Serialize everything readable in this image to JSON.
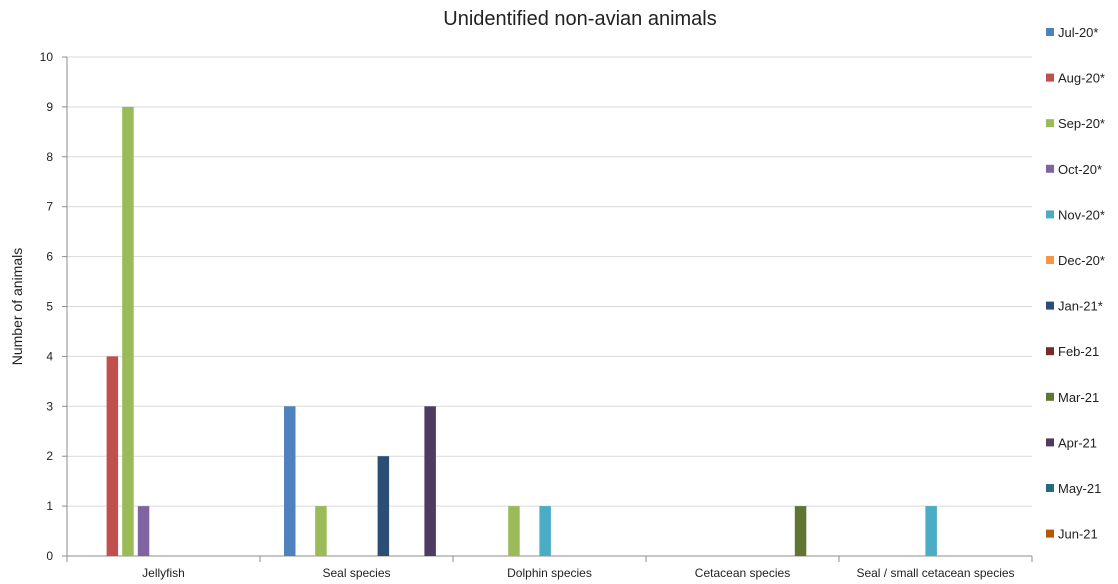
{
  "chart_data": {
    "type": "bar",
    "title": "Unidentified non-avian animals",
    "xlabel": "",
    "ylabel": "Number of animals",
    "ylim": [
      0,
      10
    ],
    "yticks": [
      0,
      1,
      2,
      3,
      4,
      5,
      6,
      7,
      8,
      9,
      10
    ],
    "grid": true,
    "legend_position": "right",
    "categories": [
      "Jellyfish",
      "Seal species",
      "Dolphin species",
      "Cetacean species",
      "Seal / small cetacean species"
    ],
    "series": [
      {
        "name": "Jul-20*",
        "color": "#4f81bd",
        "values": [
          0,
          3,
          0,
          0,
          0
        ]
      },
      {
        "name": "Aug-20*",
        "color": "#c0504d",
        "values": [
          4,
          0,
          0,
          0,
          0
        ]
      },
      {
        "name": "Sep-20*",
        "color": "#9bbb59",
        "values": [
          9,
          1,
          1,
          0,
          0
        ]
      },
      {
        "name": "Oct-20*",
        "color": "#8064a2",
        "values": [
          1,
          0,
          0,
          0,
          0
        ]
      },
      {
        "name": "Nov-20*",
        "color": "#4bacc6",
        "values": [
          0,
          0,
          1,
          0,
          1
        ]
      },
      {
        "name": "Dec-20*",
        "color": "#f79646",
        "values": [
          0,
          0,
          0,
          0,
          0
        ]
      },
      {
        "name": "Jan-21*",
        "color": "#2c4d75",
        "values": [
          0,
          2,
          0,
          0,
          0
        ]
      },
      {
        "name": "Feb-21",
        "color": "#772c2a",
        "values": [
          0,
          0,
          0,
          0,
          0
        ]
      },
      {
        "name": "Mar-21",
        "color": "#5f7530",
        "values": [
          0,
          0,
          0,
          1,
          0
        ]
      },
      {
        "name": "Apr-21",
        "color": "#4d3b62",
        "values": [
          0,
          3,
          0,
          0,
          0
        ]
      },
      {
        "name": "May-21",
        "color": "#276a7c",
        "values": [
          0,
          0,
          0,
          0,
          0
        ]
      },
      {
        "name": "Jun-21",
        "color": "#b65708",
        "values": [
          0,
          0,
          0,
          0,
          0
        ]
      }
    ]
  }
}
